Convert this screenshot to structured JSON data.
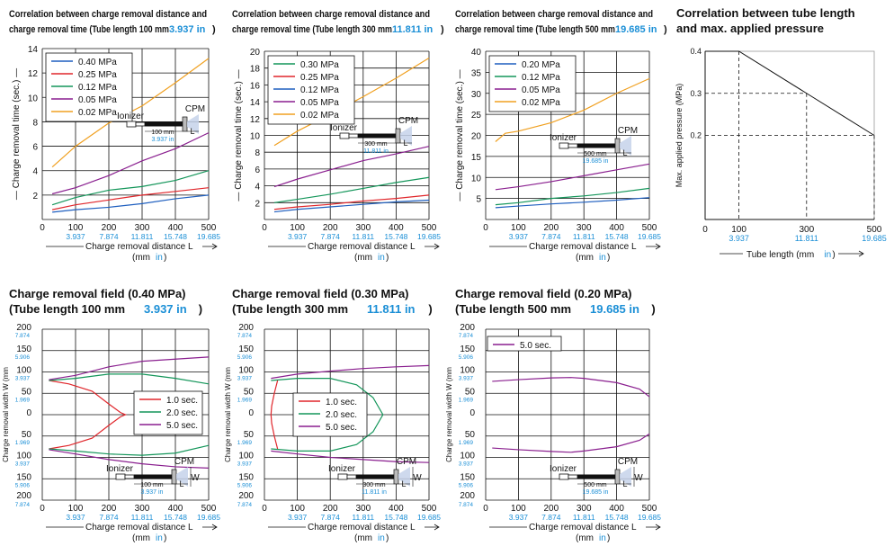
{
  "colors": {
    "blue": "#1f5fbf",
    "red": "#e0262b",
    "green": "#14965a",
    "purple": "#8a1f8f",
    "orange": "#f0a020",
    "accent": "#1b8fd6",
    "grid": "#111111",
    "line": "#111111"
  },
  "chart_data": [
    {
      "id": "c1",
      "type": "line",
      "title_line1": "Correlation between charge removal distance and",
      "title_line2": "charge removal time (Tube length 100 mm ",
      "title_inch": "3.937 in",
      "title_end": ")",
      "ylabel": "Charge removal time (sec.)",
      "xlabel": "Charge removal distance L",
      "xunit_mm": "(mm ",
      "xunit_in": "in",
      "xunit_end": ")",
      "xlim": [
        0,
        500
      ],
      "ylim": [
        0,
        14
      ],
      "xticks": [
        "0",
        "100",
        "200",
        "300",
        "400",
        "500"
      ],
      "xticks_in": [
        "3.937",
        "7.874",
        "11.811",
        "15.748",
        "19.685"
      ],
      "yticks": [
        "2",
        "4",
        "6",
        "8",
        "10",
        "12",
        "14"
      ],
      "legend": [
        "0.40 MPa",
        "0.25 MPa",
        "0.12 MPa",
        "0.05 MPa",
        "0.02 MPa"
      ],
      "series": [
        {
          "name": "0.40 MPa",
          "color": "blue",
          "x": [
            30,
            100,
            200,
            300,
            400,
            500
          ],
          "y": [
            0.6,
            0.8,
            1.0,
            1.3,
            1.7,
            2.0
          ]
        },
        {
          "name": "0.25 MPa",
          "color": "red",
          "x": [
            30,
            100,
            200,
            300,
            400,
            500
          ],
          "y": [
            0.8,
            1.2,
            1.6,
            2.0,
            2.3,
            2.6
          ]
        },
        {
          "name": "0.12 MPa",
          "color": "green",
          "x": [
            30,
            100,
            200,
            300,
            400,
            500
          ],
          "y": [
            1.2,
            1.8,
            2.4,
            2.7,
            3.2,
            4.0
          ]
        },
        {
          "name": "0.05 MPa",
          "color": "purple",
          "x": [
            30,
            100,
            200,
            300,
            400,
            500
          ],
          "y": [
            2.1,
            2.6,
            3.6,
            4.8,
            5.8,
            7.1
          ]
        },
        {
          "name": "0.02 MPa",
          "color": "orange",
          "x": [
            30,
            100,
            200,
            300,
            400,
            500
          ],
          "y": [
            4.3,
            6.0,
            7.9,
            9.3,
            11.2,
            13.2
          ]
        }
      ],
      "diagram": {
        "cpm": "CPM",
        "ionizer": "Ionizer",
        "dim": "100 mm",
        "dim_in": "3.937 in",
        "l": "L"
      }
    },
    {
      "id": "c2",
      "type": "line",
      "title_line1": "Correlation between charge removal distance and",
      "title_line2": "charge removal time (Tube length 300 mm ",
      "title_inch": "11.811 in",
      "title_end": ")",
      "ylabel": "Charge removal time (sec.)",
      "xlabel": "Charge removal distance L",
      "xunit_mm": "(mm ",
      "xunit_in": "in",
      "xunit_end": ")",
      "xlim": [
        0,
        500
      ],
      "ylim": [
        0,
        20
      ],
      "xticks": [
        "0",
        "100",
        "200",
        "300",
        "400",
        "500"
      ],
      "xticks_in": [
        "3.937",
        "7.874",
        "11.811",
        "15.748",
        "19.685"
      ],
      "yticks": [
        "2",
        "4",
        "6",
        "8",
        "10",
        "12",
        "14",
        "16",
        "18",
        "20"
      ],
      "legend": [
        "0.30 MPa",
        "0.25 MPa",
        "0.12 MPa",
        "0.05 MPa",
        "0.02 MPa"
      ],
      "series": [
        {
          "name": "0.30 MPa",
          "color": "green",
          "x": [
            30,
            100,
            200,
            300,
            400,
            500
          ],
          "y": [
            2.0,
            2.4,
            3.0,
            3.7,
            4.4,
            5.0
          ]
        },
        {
          "name": "0.25 MPa",
          "color": "red",
          "x": [
            30,
            100,
            200,
            300,
            400,
            500
          ],
          "y": [
            1.2,
            1.5,
            1.8,
            2.2,
            2.5,
            2.9
          ]
        },
        {
          "name": "0.12 MPa",
          "color": "blue",
          "x": [
            30,
            100,
            200,
            300,
            400,
            500
          ],
          "y": [
            0.9,
            1.2,
            1.5,
            1.8,
            2.1,
            2.3
          ]
        },
        {
          "name": "0.05 MPa",
          "color": "purple",
          "x": [
            30,
            100,
            200,
            300,
            400,
            500
          ],
          "y": [
            3.9,
            4.8,
            5.9,
            7.0,
            7.8,
            8.7
          ]
        },
        {
          "name": "0.02 MPa",
          "color": "orange",
          "x": [
            30,
            100,
            200,
            300,
            400,
            500
          ],
          "y": [
            8.8,
            10.5,
            12.5,
            14.6,
            16.8,
            19.2
          ]
        }
      ],
      "diagram": {
        "cpm": "CPM",
        "ionizer": "Ionizer",
        "dim": "300 mm",
        "dim_in": "11.811 in",
        "l": "L"
      }
    },
    {
      "id": "c3",
      "type": "line",
      "title_line1": "Correlation between charge removal distance and",
      "title_line2": "charge removal time (Tube length 500 mm ",
      "title_inch": "19.685 in",
      "title_end": ")",
      "ylabel": "Charge removal time (sec.)",
      "xlabel": "Charge removal distance L",
      "xunit_mm": "(mm ",
      "xunit_in": "in",
      "xunit_end": ")",
      "xlim": [
        0,
        500
      ],
      "ylim": [
        0,
        40
      ],
      "xticks": [
        "0",
        "100",
        "200",
        "300",
        "400",
        "500"
      ],
      "xticks_in": [
        "3.937",
        "7.874",
        "11.811",
        "15.748",
        "19.685"
      ],
      "yticks": [
        "5",
        "10",
        "15",
        "20",
        "25",
        "30",
        "35",
        "40"
      ],
      "legend": [
        "0.20 MPa",
        "0.12 MPa",
        "0.05 MPa",
        "0.02 MPa"
      ],
      "series": [
        {
          "name": "0.20 MPa",
          "color": "blue",
          "x": [
            30,
            100,
            200,
            300,
            400,
            500
          ],
          "y": [
            2.8,
            3.2,
            3.7,
            4.1,
            4.6,
            5.2
          ]
        },
        {
          "name": "0.12 MPa",
          "color": "green",
          "x": [
            30,
            100,
            200,
            300,
            400,
            500
          ],
          "y": [
            3.5,
            4.0,
            5.0,
            5.6,
            6.4,
            7.4
          ]
        },
        {
          "name": "0.05 MPa",
          "color": "purple",
          "x": [
            30,
            100,
            200,
            300,
            400,
            500
          ],
          "y": [
            7.1,
            7.8,
            9.0,
            10.4,
            11.8,
            13.2
          ]
        },
        {
          "name": "0.02 MPa",
          "color": "orange",
          "x": [
            30,
            60,
            100,
            200,
            300,
            400,
            500
          ],
          "y": [
            18.5,
            20.5,
            21.0,
            23.0,
            26.0,
            30.0,
            33.5
          ]
        }
      ],
      "diagram": {
        "cpm": "CPM",
        "ionizer": "Ionizer",
        "dim": "500 mm",
        "dim_in": "19.685 in",
        "l": "L"
      }
    },
    {
      "id": "c4",
      "type": "line",
      "title_line1": "Correlation between tube length",
      "title_line2": "and max. applied pressure",
      "ylabel": "Max. applied pressure (MPa)",
      "xlabel": "Tube length (mm ",
      "xunit_in": "in",
      "xunit_end": ")",
      "xlim": [
        0,
        500
      ],
      "ylim": [
        0,
        0.4
      ],
      "xticks": [
        "0",
        "100",
        "300",
        "500"
      ],
      "xticks_in": [
        "3.937",
        "11.811",
        "19.685"
      ],
      "yticks": [
        "0.2",
        "0.3",
        "0.4"
      ],
      "series": [
        {
          "name": "max",
          "color": "line",
          "x": [
            100,
            300,
            500
          ],
          "y": [
            0.4,
            0.3,
            0.2
          ]
        }
      ]
    },
    {
      "id": "c5",
      "type": "line",
      "title_line1": "Charge removal field (0.40 MPa)",
      "title_line2": "(Tube length 100 mm ",
      "title_inch": "3.937 in",
      "title_end": ")",
      "ylabel": "Charge removal width W (mm ",
      "ylabel_in": "in",
      "ylabel_end": ")",
      "xlabel": "Charge removal distance L",
      "xunit_mm": "(mm ",
      "xunit_in": "in",
      "xunit_end": ")",
      "xlim": [
        0,
        500
      ],
      "ylim": [
        -200,
        200
      ],
      "xticks": [
        "0",
        "100",
        "200",
        "300",
        "400",
        "500"
      ],
      "xticks_in": [
        "3.937",
        "7.874",
        "11.811",
        "15.748",
        "19.685"
      ],
      "yticks": [
        "200",
        "150",
        "100",
        "50",
        "0",
        "50",
        "100",
        "150",
        "200"
      ],
      "yticks_in": [
        "7.874",
        "5.906",
        "3.937",
        "1.969",
        "0",
        "1.969",
        "3.937",
        "5.906",
        "7.874"
      ],
      "legend": [
        "1.0 sec.",
        "2.0 sec.",
        "5.0 sec."
      ],
      "series": [
        {
          "name": "1.0 sec.",
          "color": "red",
          "x": [
            20,
            80,
            150,
            200,
            235,
            250,
            235,
            200,
            150,
            80,
            20
          ],
          "y": [
            80,
            72,
            55,
            25,
            5,
            0,
            -5,
            -25,
            -55,
            -72,
            -80
          ]
        },
        {
          "name": "2.0 sec.",
          "color": "green",
          "x": [
            20,
            100,
            200,
            300,
            400,
            500
          ],
          "y": [
            80,
            85,
            95,
            95,
            85,
            72
          ]
        },
        {
          "name": "2.0 sec. lower",
          "color": "green",
          "x": [
            20,
            100,
            200,
            300,
            400,
            500
          ],
          "y": [
            -80,
            -85,
            -92,
            -95,
            -90,
            -72
          ]
        },
        {
          "name": "5.0 sec.",
          "color": "purple",
          "x": [
            20,
            100,
            200,
            300,
            400,
            500
          ],
          "y": [
            82,
            92,
            112,
            125,
            130,
            135
          ]
        },
        {
          "name": "5.0 sec. lower",
          "color": "purple",
          "x": [
            20,
            100,
            200,
            300,
            400,
            500
          ],
          "y": [
            -82,
            -92,
            -105,
            -115,
            -122,
            -125
          ]
        }
      ],
      "diagram": {
        "cpm": "CPM",
        "ionizer": "Ionizer",
        "dim": "100 mm",
        "dim_in": "3.937 in",
        "l": "L",
        "w": "W"
      }
    },
    {
      "id": "c6",
      "type": "line",
      "title_line1": "Charge removal field (0.30 MPa)",
      "title_line2": "(Tube length 300 mm ",
      "title_inch": "11.811 in",
      "title_end": ")",
      "ylabel": "Charge removal width W (mm ",
      "ylabel_in": "in",
      "ylabel_end": ")",
      "xlabel": "Charge removal distance L",
      "xunit_mm": "(mm ",
      "xunit_in": "in",
      "xunit_end": ")",
      "xlim": [
        0,
        500
      ],
      "ylim": [
        -200,
        200
      ],
      "xticks": [
        "0",
        "100",
        "200",
        "300",
        "400",
        "500"
      ],
      "xticks_in": [
        "3.937",
        "7.874",
        "11.811",
        "15.748",
        "19.685"
      ],
      "yticks": [
        "200",
        "150",
        "100",
        "50",
        "0",
        "50",
        "100",
        "150",
        "200"
      ],
      "yticks_in": [
        "7.874",
        "5.906",
        "3.937",
        "1.969",
        "0",
        "1.969",
        "3.937",
        "5.906",
        "7.874"
      ],
      "legend": [
        "1.0 sec.",
        "2.0 sec.",
        "5.0 sec."
      ],
      "series": [
        {
          "name": "1.0 sec.",
          "color": "red",
          "x": [
            40,
            30,
            22,
            20,
            22,
            30,
            40
          ],
          "y": [
            80,
            50,
            20,
            0,
            -20,
            -50,
            -80
          ]
        },
        {
          "name": "2.0 sec.",
          "color": "green",
          "x": [
            20,
            100,
            200,
            280,
            330,
            360,
            330,
            280,
            200,
            100,
            20
          ],
          "y": [
            80,
            85,
            85,
            70,
            40,
            0,
            -40,
            -70,
            -85,
            -85,
            -80
          ]
        },
        {
          "name": "5.0 sec.",
          "color": "purple",
          "x": [
            20,
            100,
            200,
            300,
            400,
            500
          ],
          "y": [
            85,
            95,
            102,
            108,
            112,
            115
          ]
        },
        {
          "name": "5.0 sec. lower",
          "color": "purple",
          "x": [
            20,
            100,
            200,
            300,
            400,
            500
          ],
          "y": [
            -85,
            -92,
            -100,
            -105,
            -110,
            -112
          ]
        }
      ],
      "diagram": {
        "cpm": "CPM",
        "ionizer": "Ionizer",
        "dim": "300 mm",
        "dim_in": "11.811 in",
        "l": "L",
        "w": "W"
      }
    },
    {
      "id": "c7",
      "type": "line",
      "title_line1": "Charge removal field (0.20 MPa)",
      "title_line2": "(Tube length 500 mm ",
      "title_inch": "19.685 in",
      "title_end": ")",
      "ylabel": "Charge removal width W (mm ",
      "ylabel_in": "in",
      "ylabel_end": ")",
      "xlabel": "Charge removal distance L",
      "xunit_mm": "(mm ",
      "xunit_in": "in",
      "xunit_end": ")",
      "xlim": [
        0,
        500
      ],
      "ylim": [
        -200,
        200
      ],
      "xticks": [
        "0",
        "100",
        "200",
        "300",
        "400",
        "500"
      ],
      "xticks_in": [
        "3.937",
        "7.874",
        "11.811",
        "15.748",
        "19.685"
      ],
      "yticks": [
        "200",
        "150",
        "100",
        "50",
        "0",
        "50",
        "100",
        "150",
        "200"
      ],
      "yticks_in": [
        "7.874",
        "5.906",
        "3.937",
        "1.969",
        "0",
        "1.969",
        "3.937",
        "5.906",
        "7.874"
      ],
      "legend": [
        "5.0 sec."
      ],
      "series": [
        {
          "name": "5.0 sec.",
          "color": "purple",
          "x": [
            20,
            100,
            200,
            260,
            300,
            400,
            470,
            500
          ],
          "y": [
            78,
            82,
            86,
            87,
            85,
            75,
            60,
            42
          ]
        },
        {
          "name": "5.0 sec. lower",
          "color": "purple",
          "x": [
            20,
            100,
            200,
            260,
            300,
            400,
            470,
            500
          ],
          "y": [
            -78,
            -82,
            -86,
            -88,
            -85,
            -75,
            -60,
            -45
          ]
        }
      ],
      "diagram": {
        "cpm": "CPM",
        "ionizer": "Ionizer",
        "dim": "500 mm",
        "dim_in": "19.685 in",
        "l": "L",
        "w": "W"
      }
    }
  ]
}
